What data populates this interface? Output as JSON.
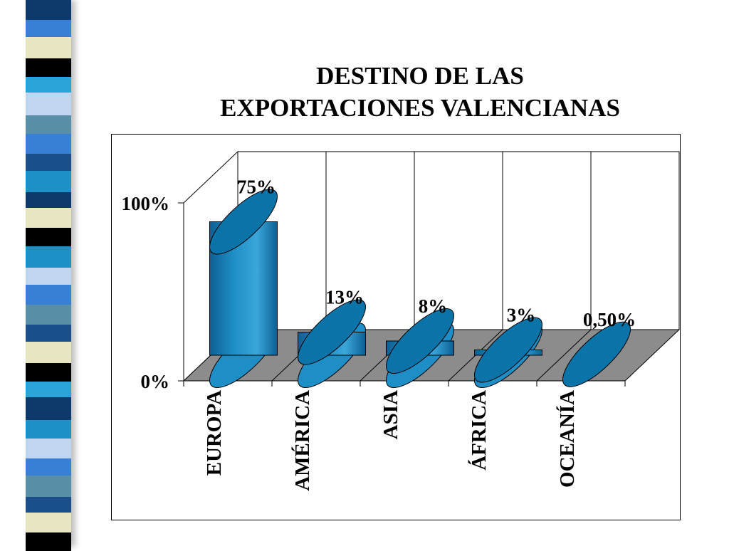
{
  "slide": {
    "title_line1": "DESTINO DE LAS",
    "title_line2": "EXPORTACIONES VALENCIANAS"
  },
  "colors": {
    "bar_side": "#1e8ec6",
    "bar_side_dark": "#0d5f93",
    "bar_top": "#0a74a8",
    "floor": "#8c8c8c",
    "stripe": [
      "#0d3a6b",
      "#3a7fd6",
      "#e8e6c2",
      "#000000",
      "#2aa3d8",
      "#c0d6f0",
      "#5a8fa8",
      "#1b4f8a",
      "#ffffff",
      "#1e90c8"
    ]
  },
  "chart_data": {
    "type": "bar",
    "title": "DESTINO DE LAS EXPORTACIONES VALENCIANAS",
    "categories": [
      "EUROPA",
      "AMÉRICA",
      "ASIA",
      "ÁFRICA",
      "OCEANÍA"
    ],
    "values": [
      75,
      13,
      8,
      3,
      0.5
    ],
    "data_labels": [
      "75%",
      "13%",
      "8%",
      "3%",
      "0,50%"
    ],
    "y_ticks": [
      "0%",
      "100%"
    ],
    "ylim": [
      0,
      100
    ],
    "style": "3d-cylinder",
    "grid": "vertical-walls",
    "legend": "none"
  }
}
